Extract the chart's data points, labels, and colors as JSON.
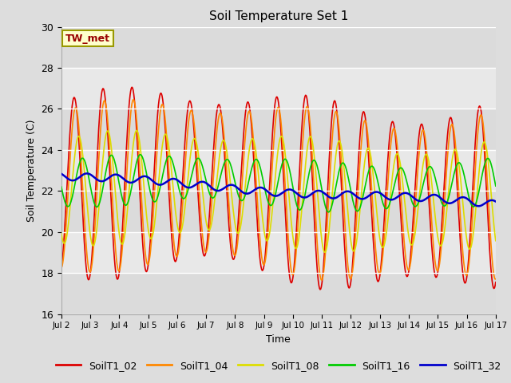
{
  "title": "Soil Temperature Set 1",
  "xlabel": "Time",
  "ylabel": "Soil Temperature (C)",
  "ylim": [
    16,
    30
  ],
  "background_color": "#dddddd",
  "plot_bg_color": "#e8e8e8",
  "grid_color": "#ffffff",
  "annotation_text": "TW_met",
  "annotation_color": "#990000",
  "annotation_bg": "#ffffcc",
  "annotation_border": "#999900",
  "series": {
    "SoilT1_02": {
      "color": "#dd0000",
      "lw": 1.2
    },
    "SoilT1_04": {
      "color": "#ff8800",
      "lw": 1.2
    },
    "SoilT1_08": {
      "color": "#dddd00",
      "lw": 1.2
    },
    "SoilT1_16": {
      "color": "#00cc00",
      "lw": 1.2
    },
    "SoilT1_32": {
      "color": "#0000cc",
      "lw": 1.8
    }
  },
  "xtick_labels": [
    "Jul 2",
    "Jul 3",
    "Jul 4",
    "Jul 5",
    "Jul 6",
    "Jul 7",
    "Jul 8",
    "Jul 9",
    "Jul 10",
    "Jul 11",
    "Jul 12",
    "Jul 13",
    "Jul 14",
    "Jul 15",
    "Jul 16",
    "Jul 17"
  ],
  "ytick_values": [
    16,
    18,
    20,
    22,
    24,
    26,
    28,
    30
  ],
  "n_points": 721
}
